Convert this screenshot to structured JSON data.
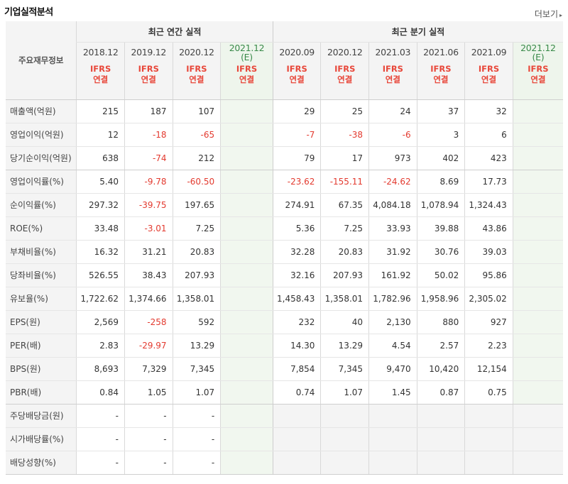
{
  "section": {
    "title": "기업실적분석",
    "more_label": "더보기"
  },
  "header": {
    "row_header": "주요재무정보",
    "annual_group": "최근 연간 실적",
    "quarter_group": "최근 분기 실적",
    "annual_periods": [
      {
        "label": "2018.12",
        "est": ""
      },
      {
        "label": "2019.12",
        "est": ""
      },
      {
        "label": "2020.12",
        "est": ""
      },
      {
        "label": "2021.12",
        "est": "(E)"
      }
    ],
    "quarter_periods": [
      {
        "label": "2020.09",
        "est": ""
      },
      {
        "label": "2020.12",
        "est": ""
      },
      {
        "label": "2021.03",
        "est": ""
      },
      {
        "label": "2021.06",
        "est": ""
      },
      {
        "label": "2021.09",
        "est": ""
      },
      {
        "label": "2021.12",
        "est": "(E)"
      }
    ],
    "basis_line1": "IFRS",
    "basis_line2": "연결"
  },
  "rows": [
    {
      "label": "매출액(억원)",
      "annual": [
        "215",
        "187",
        "107",
        ""
      ],
      "quarter": [
        "29",
        "25",
        "24",
        "37",
        "32",
        ""
      ]
    },
    {
      "label": "영업이익(억원)",
      "annual": [
        "12",
        "-18",
        "-65",
        ""
      ],
      "quarter": [
        "-7",
        "-38",
        "-6",
        "3",
        "6",
        ""
      ]
    },
    {
      "label": "당기순이익(억원)",
      "annual": [
        "638",
        "-74",
        "212",
        ""
      ],
      "quarter": [
        "79",
        "17",
        "973",
        "402",
        "423",
        ""
      ]
    },
    {
      "label": "영업이익률(%)",
      "annual": [
        "5.40",
        "-9.78",
        "-60.50",
        ""
      ],
      "quarter": [
        "-23.62",
        "-155.11",
        "-24.62",
        "8.69",
        "17.73",
        ""
      ]
    },
    {
      "label": "순이익률(%)",
      "annual": [
        "297.32",
        "-39.75",
        "197.65",
        ""
      ],
      "quarter": [
        "274.91",
        "67.35",
        "4,084.18",
        "1,078.94",
        "1,324.43",
        ""
      ]
    },
    {
      "label": "ROE(%)",
      "annual": [
        "33.48",
        "-3.01",
        "7.25",
        ""
      ],
      "quarter": [
        "5.36",
        "7.25",
        "33.93",
        "39.88",
        "43.86",
        ""
      ]
    },
    {
      "label": "부채비율(%)",
      "annual": [
        "16.32",
        "31.21",
        "20.83",
        ""
      ],
      "quarter": [
        "32.28",
        "20.83",
        "31.92",
        "30.76",
        "39.03",
        ""
      ]
    },
    {
      "label": "당좌비율(%)",
      "annual": [
        "526.55",
        "38.43",
        "207.93",
        ""
      ],
      "quarter": [
        "32.16",
        "207.93",
        "161.92",
        "50.02",
        "95.86",
        ""
      ]
    },
    {
      "label": "유보율(%)",
      "annual": [
        "1,722.62",
        "1,374.66",
        "1,358.01",
        ""
      ],
      "quarter": [
        "1,458.43",
        "1,358.01",
        "1,782.96",
        "1,958.96",
        "2,305.02",
        ""
      ]
    },
    {
      "label": "EPS(원)",
      "annual": [
        "2,569",
        "-258",
        "592",
        ""
      ],
      "quarter": [
        "232",
        "40",
        "2,130",
        "880",
        "927",
        ""
      ]
    },
    {
      "label": "PER(배)",
      "annual": [
        "2.83",
        "-29.97",
        "13.29",
        ""
      ],
      "quarter": [
        "14.30",
        "13.29",
        "4.54",
        "2.57",
        "2.23",
        ""
      ]
    },
    {
      "label": "BPS(원)",
      "annual": [
        "8,693",
        "7,329",
        "7,345",
        ""
      ],
      "quarter": [
        "7,854",
        "7,345",
        "9,470",
        "10,420",
        "12,154",
        ""
      ]
    },
    {
      "label": "PBR(배)",
      "annual": [
        "0.84",
        "1.05",
        "1.07",
        ""
      ],
      "quarter": [
        "0.74",
        "1.07",
        "1.45",
        "0.87",
        "0.75",
        ""
      ]
    },
    {
      "label": "주당배당금(원)",
      "annual": [
        "-",
        "-",
        "-",
        ""
      ],
      "quarter": [
        "",
        "",
        "",
        "",
        "",
        ""
      ]
    },
    {
      "label": "시가배당률(%)",
      "annual": [
        "-",
        "-",
        "-",
        ""
      ],
      "quarter": [
        "",
        "",
        "",
        "",
        "",
        ""
      ]
    },
    {
      "label": "배당성향(%)",
      "annual": [
        "-",
        "-",
        "-",
        ""
      ],
      "quarter": [
        "",
        "",
        "",
        "",
        "",
        ""
      ]
    }
  ],
  "colors": {
    "negative": "#e33a2f",
    "basis": "#e8473a",
    "estimate": "#3a8a4a",
    "estimate_bg": "#f1f7ef",
    "header_bg": "#f4f4f4"
  }
}
